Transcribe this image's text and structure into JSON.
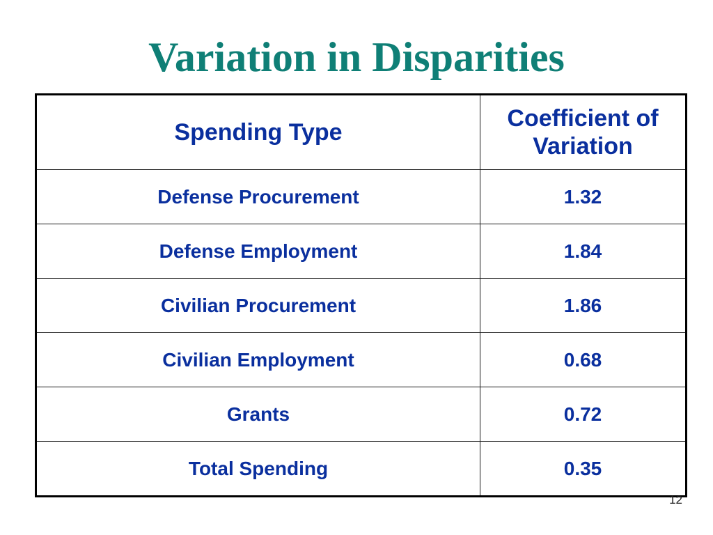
{
  "theme": {
    "title_color": "#0f7f76",
    "table_text_color": "#0a2f9e"
  },
  "slide": {
    "title": "Variation in Disparities",
    "page_number": "12"
  },
  "table": {
    "headers": {
      "spending_type": "Spending Type",
      "coefficient_line1": "Coefficient of",
      "coefficient_line2": "Variation"
    },
    "rows": [
      {
        "spending_type": "Defense Procurement",
        "coefficient": "1.32"
      },
      {
        "spending_type": "Defense Employment",
        "coefficient": "1.84"
      },
      {
        "spending_type": "Civilian Procurement",
        "coefficient": "1.86"
      },
      {
        "spending_type": "Civilian Employment",
        "coefficient": "0.68"
      },
      {
        "spending_type": "Grants",
        "coefficient": "0.72"
      },
      {
        "spending_type": "Total Spending",
        "coefficient": "0.35"
      }
    ]
  }
}
